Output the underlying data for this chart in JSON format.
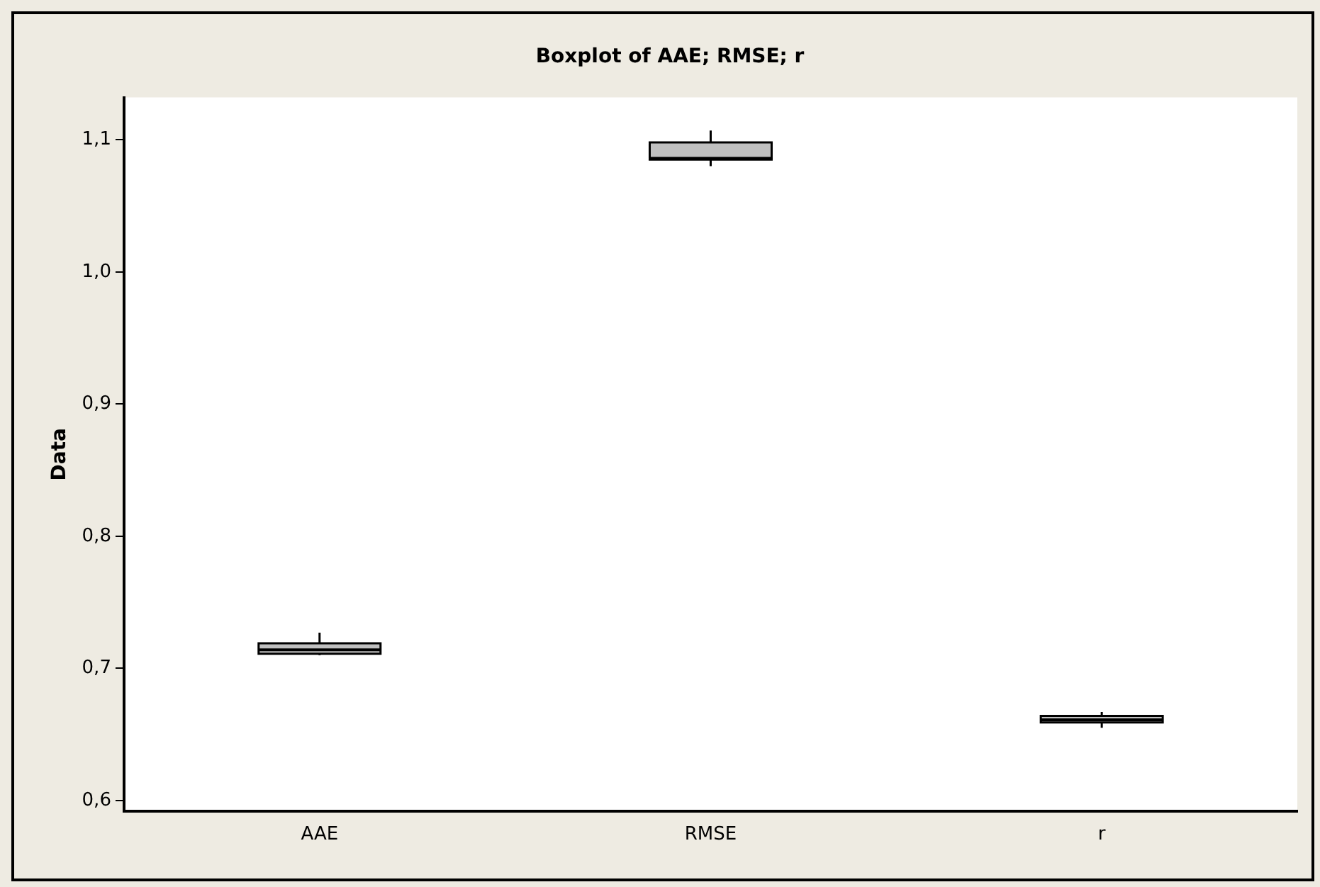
{
  "chart_data": {
    "type": "box",
    "title": "Boxplot of AAE; RMSE; r",
    "ylabel": "Data",
    "categories": [
      "AAE",
      "RMSE",
      "r"
    ],
    "color": "#c0c0c0",
    "boxes": [
      {
        "low": 0.71,
        "q1": 0.711,
        "median": 0.714,
        "q3": 0.719,
        "high": 0.727
      },
      {
        "low": 1.08,
        "q1": 1.085,
        "median": 1.086,
        "q3": 1.098,
        "high": 1.107
      },
      {
        "low": 0.655,
        "q1": 0.659,
        "median": 0.661,
        "q3": 0.664,
        "high": 0.667
      }
    ],
    "ylim": [
      0.592,
      1.132
    ],
    "yticks": [
      {
        "value": 0.6,
        "label": "0,6"
      },
      {
        "value": 0.7,
        "label": "0,7"
      },
      {
        "value": 0.8,
        "label": "0,8"
      },
      {
        "value": 0.9,
        "label": "0,9"
      },
      {
        "value": 1.0,
        "label": "1,0"
      },
      {
        "value": 1.1,
        "label": "1,1"
      }
    ],
    "grid": false,
    "legend": false
  }
}
